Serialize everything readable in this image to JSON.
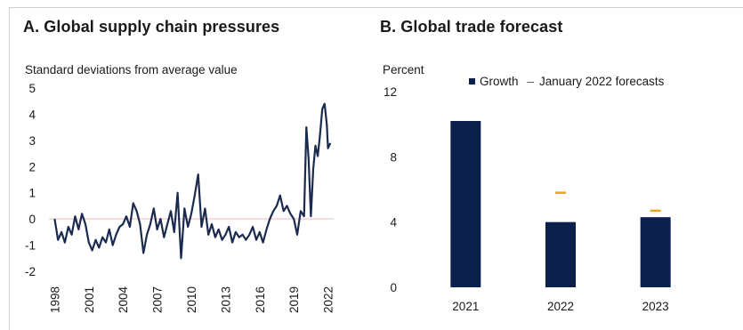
{
  "colors": {
    "line": "#1b2a4f",
    "bar": "#0b1f4d",
    "forecast": "#f3a21f",
    "zero_line": "#f2c7c7"
  },
  "panel_a": {
    "title": "A. Global supply chain pressures",
    "ylabel": "Standard deviations from average value"
  },
  "panel_b": {
    "title": "B. Global trade forecast",
    "ylabel": "Percent",
    "legend_growth": "Growth",
    "legend_forecast": "January 2022 forecasts"
  },
  "chart_data": [
    {
      "type": "line",
      "title": "A. Global supply chain pressures",
      "ylabel": "Standard deviations from average value",
      "ylim": [
        -2,
        5
      ],
      "yticks": [
        "-2",
        "-1",
        "0",
        "1",
        "2",
        "3",
        "4",
        "5"
      ],
      "xticks": [
        "1998",
        "2001",
        "2004",
        "2007",
        "2010",
        "2013",
        "2016",
        "2019",
        "2022"
      ],
      "xlim": [
        1997.5,
        2022.5
      ],
      "series": [
        {
          "x": [
            1998.0,
            1998.3,
            1998.6,
            1998.9,
            1999.2,
            1999.5,
            1999.8,
            2000.1,
            2000.4,
            2000.7,
            2001.0,
            2001.3,
            2001.6,
            2001.9,
            2002.2,
            2002.5,
            2002.8,
            2003.1,
            2003.4,
            2003.7,
            2004.0,
            2004.3,
            2004.6,
            2004.9,
            2005.2,
            2005.5,
            2005.8,
            2006.1,
            2006.4,
            2006.7,
            2007.0,
            2007.3,
            2007.6,
            2007.9,
            2008.2,
            2008.5,
            2008.8,
            2009.1,
            2009.4,
            2009.7,
            2010.0,
            2010.3,
            2010.6,
            2010.9,
            2011.2,
            2011.5,
            2011.8,
            2012.1,
            2012.4,
            2012.7,
            2013.0,
            2013.3,
            2013.6,
            2013.9,
            2014.2,
            2014.5,
            2014.8,
            2015.1,
            2015.4,
            2015.7,
            2016.0,
            2016.3,
            2016.6,
            2016.9,
            2017.2,
            2017.5,
            2017.8,
            2018.1,
            2018.4,
            2018.7,
            2019.0,
            2019.3,
            2019.6,
            2019.9,
            2020.1,
            2020.3,
            2020.5,
            2020.7,
            2020.9,
            2021.1,
            2021.3,
            2021.5,
            2021.7,
            2021.9,
            2022.0,
            2022.2
          ],
          "y": [
            0.0,
            -0.8,
            -0.5,
            -0.9,
            -0.3,
            -0.6,
            0.1,
            -0.4,
            0.2,
            -0.2,
            -0.9,
            -1.2,
            -0.8,
            -1.1,
            -0.7,
            -0.9,
            -0.4,
            -1.0,
            -0.6,
            -0.3,
            -0.2,
            0.1,
            -0.3,
            0.6,
            0.3,
            -0.2,
            -1.3,
            -0.6,
            -0.2,
            0.4,
            -0.4,
            0.0,
            -0.7,
            -0.2,
            0.3,
            -0.5,
            1.0,
            -1.5,
            0.4,
            -0.3,
            0.2,
            0.9,
            1.7,
            -0.3,
            0.4,
            -0.6,
            -0.2,
            -0.7,
            -0.4,
            -0.8,
            -0.6,
            -0.3,
            -0.9,
            -0.5,
            -0.7,
            -0.6,
            -0.8,
            -0.6,
            -0.3,
            -0.8,
            -0.5,
            -0.9,
            -0.4,
            0.0,
            0.3,
            0.5,
            0.9,
            0.3,
            0.5,
            0.2,
            0.0,
            -0.6,
            0.3,
            0.1,
            3.5,
            2.3,
            0.1,
            1.9,
            2.8,
            2.4,
            3.2,
            4.2,
            4.4,
            3.6,
            2.7,
            2.9
          ]
        }
      ]
    },
    {
      "type": "bar",
      "title": "B. Global trade forecast",
      "ylabel": "Percent",
      "ylim": [
        0,
        12
      ],
      "yticks": [
        "0",
        "4",
        "8",
        "12"
      ],
      "categories": [
        "2021",
        "2022",
        "2023"
      ],
      "series": [
        {
          "name": "Growth",
          "values": [
            10.2,
            4.0,
            4.3
          ]
        },
        {
          "name": "January 2022 forecasts",
          "values": [
            null,
            5.8,
            4.7
          ]
        }
      ]
    }
  ]
}
